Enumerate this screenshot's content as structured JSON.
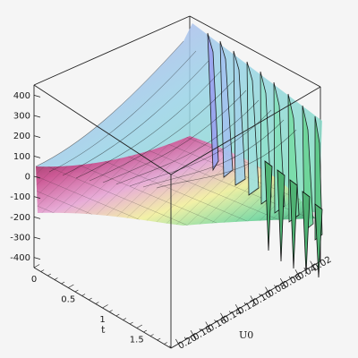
{
  "chart_data": {
    "type": "surface3d",
    "axes": {
      "x": {
        "label": "t",
        "range": [
          0,
          2
        ],
        "ticks": [
          "0",
          "0.5",
          "1",
          "1.5"
        ]
      },
      "y": {
        "label": "U0",
        "range": [
          0.01,
          0.21
        ],
        "ticks": [
          "0.02",
          "0.04",
          "0.06",
          "0.08",
          "0.10",
          "0.12",
          "0.14",
          "0.16",
          "0.18",
          "0.20"
        ]
      },
      "z": {
        "range": [
          -450,
          450
        ],
        "ticks": [
          "400",
          "300",
          "200",
          "100",
          "0",
          "-100",
          "-200",
          "-300",
          "-400"
        ]
      }
    },
    "surface": {
      "description_free": false,
      "sample_points": [
        {
          "t": 0.0,
          "U0": 0.2,
          "z": -230
        },
        {
          "t": 0.0,
          "U0": 0.1,
          "z": -150
        },
        {
          "t": 0.0,
          "U0": 0.01,
          "z": 420
        },
        {
          "t": 1.0,
          "U0": 0.2,
          "z": -210
        },
        {
          "t": 1.0,
          "U0": 0.1,
          "z": -180
        },
        {
          "t": 1.0,
          "U0": 0.01,
          "z": 330
        },
        {
          "t": 2.0,
          "U0": 0.2,
          "z": -180
        },
        {
          "t": 2.0,
          "U0": 0.1,
          "z": -130
        },
        {
          "t": 2.0,
          "U0": 0.01,
          "z": -260
        }
      ]
    },
    "box": true,
    "grid": true,
    "colormap": [
      "#6d1d3a",
      "#c9508f",
      "#e7a9d6",
      "#f2f0a2",
      "#7bd9a2",
      "#2f8f5f"
    ]
  }
}
